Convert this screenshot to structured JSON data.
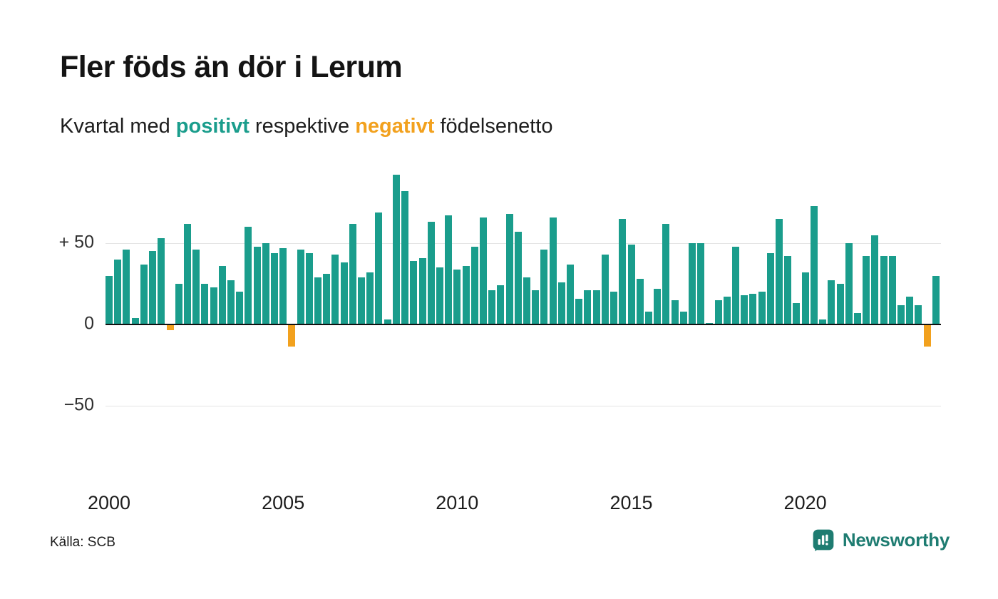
{
  "header": {
    "title": "Fler föds än dör i Lerum",
    "subtitle": {
      "part1": "Kvartal med ",
      "positive_word": "positivt",
      "part2": " respektive ",
      "negative_word": "negativt",
      "part3": " födelsenetto"
    }
  },
  "footer": {
    "source": "Källa: SCB",
    "brand": "Newsworthy"
  },
  "colors": {
    "positive": "#1a9d8c",
    "negative": "#f2a11e",
    "brand_teal": "#1e7c71",
    "axis": "#111111",
    "gridline": "#e4e4e4"
  },
  "chart_data": {
    "type": "bar",
    "title": "Fler föds än dör i Lerum",
    "subtitle": "Kvartal med positivt respektive negativt födelsenetto",
    "xlabel": "",
    "ylabel": "",
    "ylim": [
      -80,
      96
    ],
    "grid": "horizontal",
    "legend": "none",
    "positive_color": "#1a9d8c",
    "negative_color": "#f2a11e",
    "yticks": [
      {
        "value": 50,
        "label": "+ 50"
      },
      {
        "value": 0,
        "label": "0"
      },
      {
        "value": -50,
        "label": "−50"
      }
    ],
    "xticks": [
      "2000",
      "2005",
      "2010",
      "2015",
      "2020"
    ],
    "x": [
      "2000 Q1",
      "2000 Q2",
      "2000 Q3",
      "2000 Q4",
      "2001 Q1",
      "2001 Q2",
      "2001 Q3",
      "2001 Q4",
      "2002 Q1",
      "2002 Q2",
      "2002 Q3",
      "2002 Q4",
      "2003 Q1",
      "2003 Q2",
      "2003 Q3",
      "2003 Q4",
      "2004 Q1",
      "2004 Q2",
      "2004 Q3",
      "2004 Q4",
      "2005 Q1",
      "2005 Q2",
      "2005 Q3",
      "2005 Q4",
      "2006 Q1",
      "2006 Q2",
      "2006 Q3",
      "2006 Q4",
      "2007 Q1",
      "2007 Q2",
      "2007 Q3",
      "2007 Q4",
      "2008 Q1",
      "2008 Q2",
      "2008 Q3",
      "2008 Q4",
      "2009 Q1",
      "2009 Q2",
      "2009 Q3",
      "2009 Q4",
      "2010 Q1",
      "2010 Q2",
      "2010 Q3",
      "2010 Q4",
      "2011 Q1",
      "2011 Q2",
      "2011 Q3",
      "2011 Q4",
      "2012 Q1",
      "2012 Q2",
      "2012 Q3",
      "2012 Q4",
      "2013 Q1",
      "2013 Q2",
      "2013 Q3",
      "2013 Q4",
      "2014 Q1",
      "2014 Q2",
      "2014 Q3",
      "2014 Q4",
      "2015 Q1",
      "2015 Q2",
      "2015 Q3",
      "2015 Q4",
      "2016 Q1",
      "2016 Q2",
      "2016 Q3",
      "2016 Q4",
      "2017 Q1",
      "2017 Q2",
      "2017 Q3",
      "2017 Q4",
      "2018 Q1",
      "2018 Q2",
      "2018 Q3",
      "2018 Q4",
      "2019 Q1",
      "2019 Q2",
      "2019 Q3",
      "2019 Q4",
      "2020 Q1",
      "2020 Q2",
      "2020 Q3",
      "2020 Q4",
      "2021 Q1",
      "2021 Q2",
      "2021 Q3",
      "2021 Q4",
      "2022 Q1",
      "2022 Q2",
      "2022 Q3",
      "2022 Q4",
      "2023 Q1",
      "2023 Q2",
      "2023 Q3",
      "2023 Q4"
    ],
    "values": [
      30,
      40,
      46,
      4,
      37,
      45,
      53,
      -3,
      25,
      62,
      46,
      25,
      23,
      36,
      27,
      20,
      60,
      48,
      50,
      44,
      47,
      -13,
      46,
      44,
      29,
      31,
      43,
      38,
      62,
      29,
      32,
      69,
      3,
      92,
      82,
      39,
      41,
      63,
      35,
      67,
      34,
      36,
      48,
      66,
      21,
      24,
      68,
      57,
      29,
      21,
      46,
      66,
      26,
      37,
      16,
      21,
      21,
      43,
      20,
      65,
      49,
      28,
      8,
      22,
      62,
      15,
      8,
      50,
      50,
      1,
      15,
      17,
      48,
      18,
      19,
      20,
      44,
      65,
      42,
      13,
      32,
      73,
      3,
      27,
      25,
      50,
      7,
      42,
      55,
      42,
      42,
      12,
      17,
      12,
      -13,
      30
    ]
  }
}
